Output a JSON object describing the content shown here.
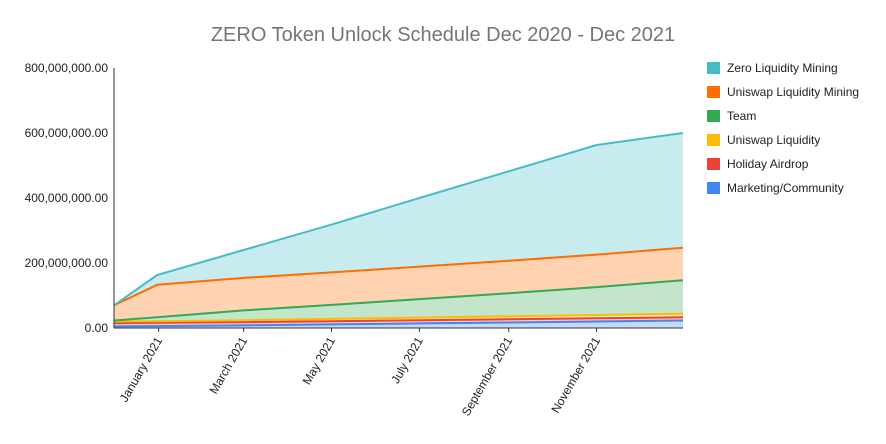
{
  "chart_data": {
    "type": "area",
    "stacked": true,
    "title": "ZERO Token Unlock Schedule Dec 2020 - Dec 2021",
    "x": [
      "2020-12-01",
      "2020-12-31",
      "2021-03-01",
      "2021-05-01",
      "2021-07-01",
      "2021-09-01",
      "2021-11-01",
      "2021-12-31"
    ],
    "series": [
      {
        "name": "Marketing/Community",
        "color": "#4285f4",
        "values": [
          5000000,
          6000000,
          8000000,
          11000000,
          14000000,
          17000000,
          20000000,
          23000000
        ]
      },
      {
        "name": "Holiday Airdrop",
        "color": "#ea4335",
        "values": [
          10000000,
          10000000,
          10000000,
          10000000,
          10000000,
          10000000,
          10000000,
          10000000
        ]
      },
      {
        "name": "Uniswap Liquidity",
        "color": "#fbbc04",
        "values": [
          5000000,
          5000000,
          6000000,
          7000000,
          8000000,
          9000000,
          10000000,
          11000000
        ]
      },
      {
        "name": "Team",
        "color": "#34a853",
        "values": [
          3000000,
          12000000,
          30000000,
          43000000,
          57000000,
          71000000,
          86000000,
          103000000
        ]
      },
      {
        "name": "Uniswap Liquidity Mining",
        "color": "#ff6d01",
        "values": [
          47000000,
          100000000,
          100000000,
          100000000,
          100000000,
          100000000,
          100000000,
          100000000
        ]
      },
      {
        "name": "Zero Liquidity Mining",
        "color": "#46bdc6",
        "values": [
          0,
          30000000,
          86000000,
          147000000,
          211000000,
          275000000,
          337000000,
          353000000
        ]
      }
    ],
    "legend_order": [
      "Zero Liquidity Mining",
      "Uniswap Liquidity Mining",
      "Team",
      "Uniswap Liquidity",
      "Holiday Airdrop",
      "Marketing/Community"
    ],
    "y_ticks": [
      {
        "value": 0,
        "label": "0.00"
      },
      {
        "value": 200000000,
        "label": "200,000,000.00"
      },
      {
        "value": 400000000,
        "label": "400,000,000.00"
      },
      {
        "value": 600000000,
        "label": "600,000,000.00"
      },
      {
        "value": 800000000,
        "label": "800,000,000.00"
      }
    ],
    "x_ticks": [
      {
        "date": "2021-01-01",
        "label": "January 2021"
      },
      {
        "date": "2021-03-01",
        "label": "March 2021"
      },
      {
        "date": "2021-05-01",
        "label": "May 2021"
      },
      {
        "date": "2021-07-01",
        "label": "July 2021"
      },
      {
        "date": "2021-09-01",
        "label": "September 2021"
      },
      {
        "date": "2021-11-01",
        "label": "November 2021"
      }
    ],
    "xlim": [
      "2020-12-01",
      "2021-12-31"
    ],
    "ylim": [
      0,
      800000000
    ],
    "xlabel": "",
    "ylabel": "",
    "grid": false,
    "legend_position": "right"
  }
}
